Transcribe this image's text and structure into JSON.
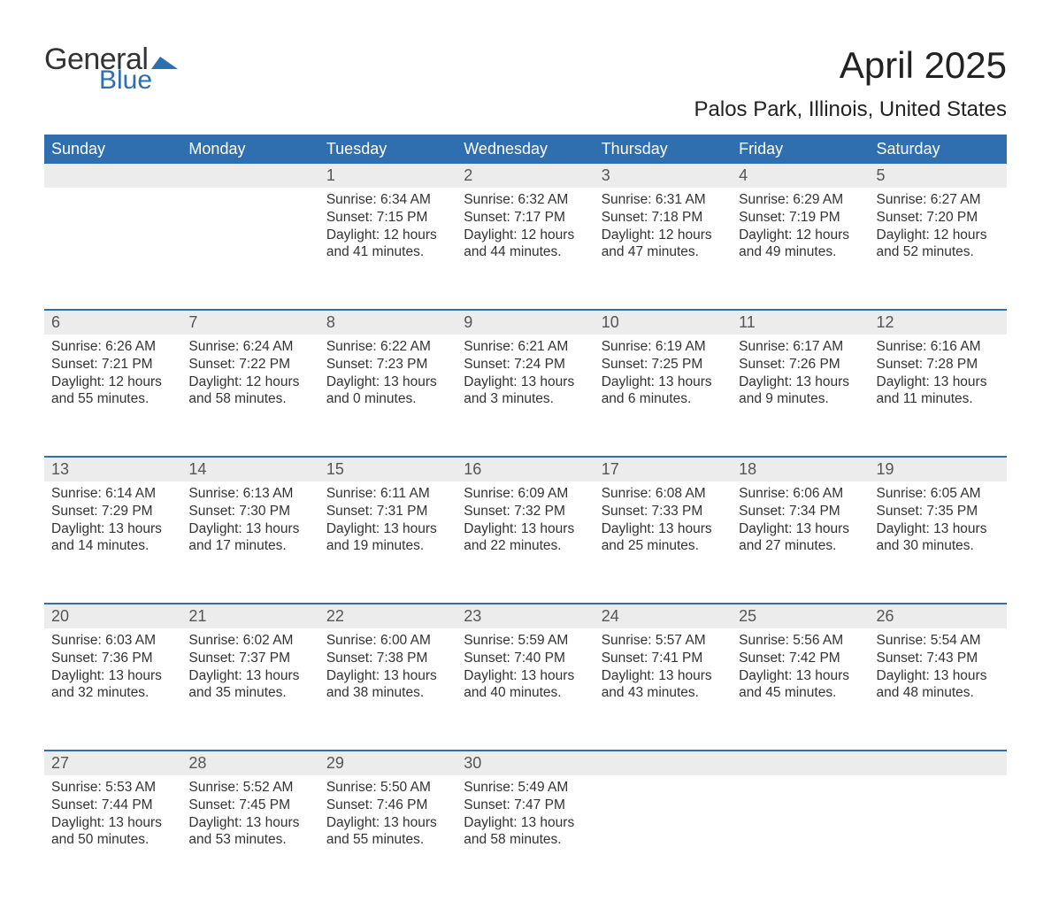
{
  "logo": {
    "general": "General",
    "blue": "Blue",
    "flag_color": "#2f6fb0"
  },
  "title": "April 2025",
  "location": "Palos Park, Illinois, United States",
  "colors": {
    "header_bg": "#2f6fb0",
    "header_text": "#ffffff",
    "daynum_bg": "#ececec",
    "body_text": "#333333",
    "rule": "#2f6fb0",
    "page_bg": "#ffffff"
  },
  "typography": {
    "title_fontsize": 42,
    "location_fontsize": 24,
    "header_fontsize": 18,
    "daynum_fontsize": 18,
    "body_fontsize": 15.5
  },
  "calendar": {
    "type": "table",
    "columns": [
      "Sunday",
      "Monday",
      "Tuesday",
      "Wednesday",
      "Thursday",
      "Friday",
      "Saturday"
    ],
    "weeks": [
      [
        null,
        null,
        {
          "n": "1",
          "sunrise": "6:34 AM",
          "sunset": "7:15 PM",
          "daylight": "12 hours and 41 minutes."
        },
        {
          "n": "2",
          "sunrise": "6:32 AM",
          "sunset": "7:17 PM",
          "daylight": "12 hours and 44 minutes."
        },
        {
          "n": "3",
          "sunrise": "6:31 AM",
          "sunset": "7:18 PM",
          "daylight": "12 hours and 47 minutes."
        },
        {
          "n": "4",
          "sunrise": "6:29 AM",
          "sunset": "7:19 PM",
          "daylight": "12 hours and 49 minutes."
        },
        {
          "n": "5",
          "sunrise": "6:27 AM",
          "sunset": "7:20 PM",
          "daylight": "12 hours and 52 minutes."
        }
      ],
      [
        {
          "n": "6",
          "sunrise": "6:26 AM",
          "sunset": "7:21 PM",
          "daylight": "12 hours and 55 minutes."
        },
        {
          "n": "7",
          "sunrise": "6:24 AM",
          "sunset": "7:22 PM",
          "daylight": "12 hours and 58 minutes."
        },
        {
          "n": "8",
          "sunrise": "6:22 AM",
          "sunset": "7:23 PM",
          "daylight": "13 hours and 0 minutes."
        },
        {
          "n": "9",
          "sunrise": "6:21 AM",
          "sunset": "7:24 PM",
          "daylight": "13 hours and 3 minutes."
        },
        {
          "n": "10",
          "sunrise": "6:19 AM",
          "sunset": "7:25 PM",
          "daylight": "13 hours and 6 minutes."
        },
        {
          "n": "11",
          "sunrise": "6:17 AM",
          "sunset": "7:26 PM",
          "daylight": "13 hours and 9 minutes."
        },
        {
          "n": "12",
          "sunrise": "6:16 AM",
          "sunset": "7:28 PM",
          "daylight": "13 hours and 11 minutes."
        }
      ],
      [
        {
          "n": "13",
          "sunrise": "6:14 AM",
          "sunset": "7:29 PM",
          "daylight": "13 hours and 14 minutes."
        },
        {
          "n": "14",
          "sunrise": "6:13 AM",
          "sunset": "7:30 PM",
          "daylight": "13 hours and 17 minutes."
        },
        {
          "n": "15",
          "sunrise": "6:11 AM",
          "sunset": "7:31 PM",
          "daylight": "13 hours and 19 minutes."
        },
        {
          "n": "16",
          "sunrise": "6:09 AM",
          "sunset": "7:32 PM",
          "daylight": "13 hours and 22 minutes."
        },
        {
          "n": "17",
          "sunrise": "6:08 AM",
          "sunset": "7:33 PM",
          "daylight": "13 hours and 25 minutes."
        },
        {
          "n": "18",
          "sunrise": "6:06 AM",
          "sunset": "7:34 PM",
          "daylight": "13 hours and 27 minutes."
        },
        {
          "n": "19",
          "sunrise": "6:05 AM",
          "sunset": "7:35 PM",
          "daylight": "13 hours and 30 minutes."
        }
      ],
      [
        {
          "n": "20",
          "sunrise": "6:03 AM",
          "sunset": "7:36 PM",
          "daylight": "13 hours and 32 minutes."
        },
        {
          "n": "21",
          "sunrise": "6:02 AM",
          "sunset": "7:37 PM",
          "daylight": "13 hours and 35 minutes."
        },
        {
          "n": "22",
          "sunrise": "6:00 AM",
          "sunset": "7:38 PM",
          "daylight": "13 hours and 38 minutes."
        },
        {
          "n": "23",
          "sunrise": "5:59 AM",
          "sunset": "7:40 PM",
          "daylight": "13 hours and 40 minutes."
        },
        {
          "n": "24",
          "sunrise": "5:57 AM",
          "sunset": "7:41 PM",
          "daylight": "13 hours and 43 minutes."
        },
        {
          "n": "25",
          "sunrise": "5:56 AM",
          "sunset": "7:42 PM",
          "daylight": "13 hours and 45 minutes."
        },
        {
          "n": "26",
          "sunrise": "5:54 AM",
          "sunset": "7:43 PM",
          "daylight": "13 hours and 48 minutes."
        }
      ],
      [
        {
          "n": "27",
          "sunrise": "5:53 AM",
          "sunset": "7:44 PM",
          "daylight": "13 hours and 50 minutes."
        },
        {
          "n": "28",
          "sunrise": "5:52 AM",
          "sunset": "7:45 PM",
          "daylight": "13 hours and 53 minutes."
        },
        {
          "n": "29",
          "sunrise": "5:50 AM",
          "sunset": "7:46 PM",
          "daylight": "13 hours and 55 minutes."
        },
        {
          "n": "30",
          "sunrise": "5:49 AM",
          "sunset": "7:47 PM",
          "daylight": "13 hours and 58 minutes."
        },
        null,
        null,
        null
      ]
    ],
    "labels": {
      "sunrise_prefix": "Sunrise: ",
      "sunset_prefix": "Sunset: ",
      "daylight_prefix": "Daylight: "
    }
  }
}
